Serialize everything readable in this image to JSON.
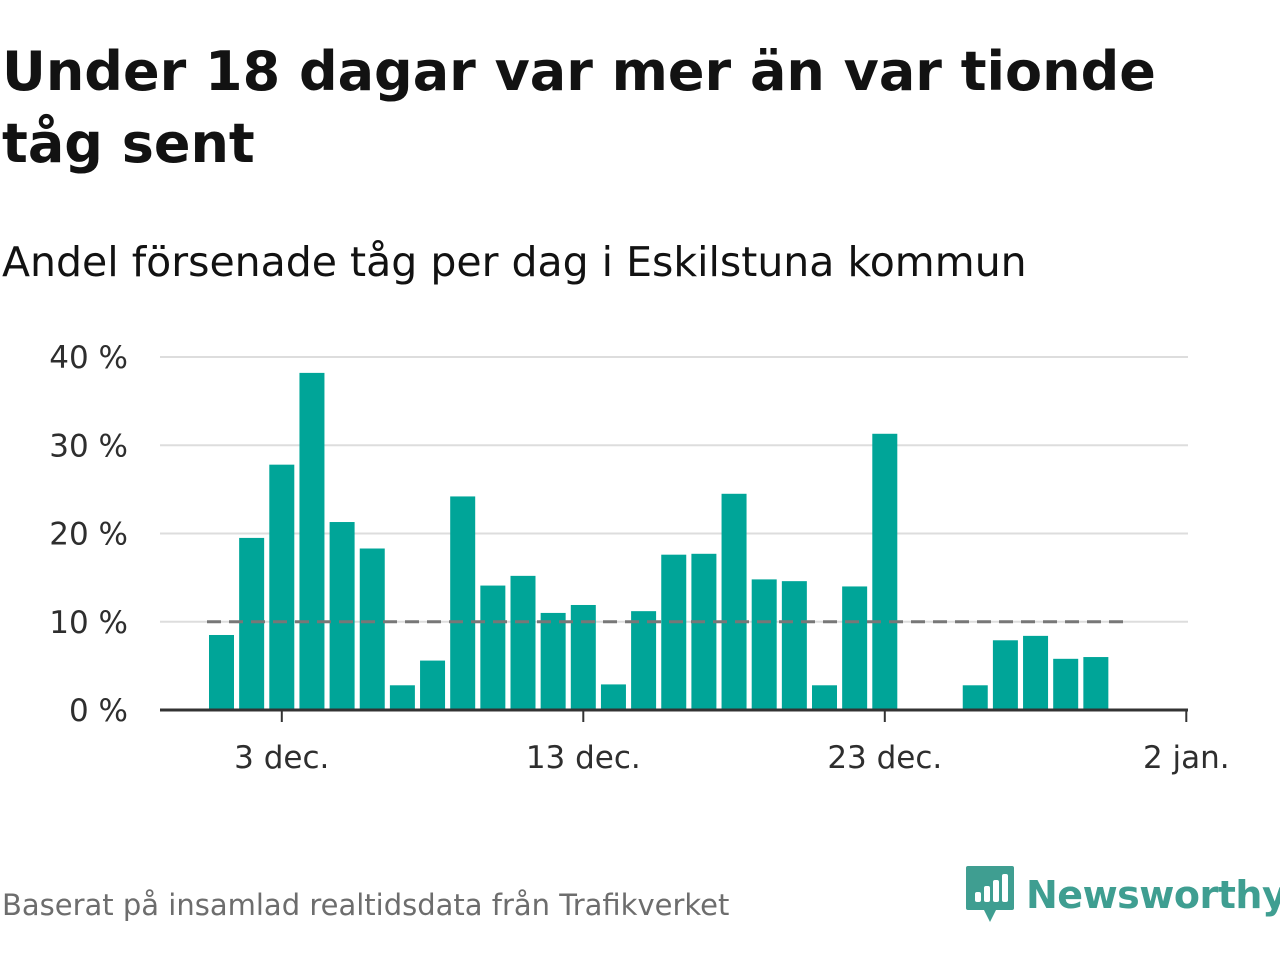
{
  "title": "Under 18 dagar var mer än var tionde tåg sent",
  "subtitle": "Andel försenade tåg per dag i Eskilstuna kommun",
  "source": "Baserat på insamlad realtidsdata från Trafikverket",
  "brand": {
    "name": "Newsworthy",
    "icon": "newsworthy-logo-icon",
    "color": "#3f9e91"
  },
  "colors": {
    "bar": "#00a598",
    "reference_line": "#777777",
    "grid": "#dddddd",
    "axis": "#333333"
  },
  "chart_data": {
    "type": "bar",
    "x_start": "2018-12-01",
    "x_end": "2019-01-02",
    "values": [
      8.5,
      19.5,
      27.8,
      38.2,
      21.3,
      18.3,
      2.8,
      5.6,
      24.2,
      14.1,
      15.2,
      11.0,
      11.9,
      2.9,
      11.2,
      17.6,
      17.7,
      24.5,
      14.8,
      14.6,
      2.8,
      14.0,
      31.3,
      null,
      null,
      2.8,
      7.9,
      8.4,
      5.8,
      6.0
    ],
    "reference_line": 10,
    "ylim": [
      0,
      40
    ],
    "yticks": [
      0,
      10,
      20,
      30,
      40
    ],
    "ytick_labels": [
      "0 %",
      "10 %",
      "20 %",
      "30 %",
      "40 %"
    ],
    "xtick_labels": [
      "3 dec.",
      "13 dec.",
      "23 dec.",
      "2 jan."
    ],
    "xtick_dates": [
      "2018-12-03",
      "2018-12-13",
      "2018-12-23",
      "2019-01-02"
    ],
    "unit": "%",
    "grid": true,
    "legend": "none"
  }
}
